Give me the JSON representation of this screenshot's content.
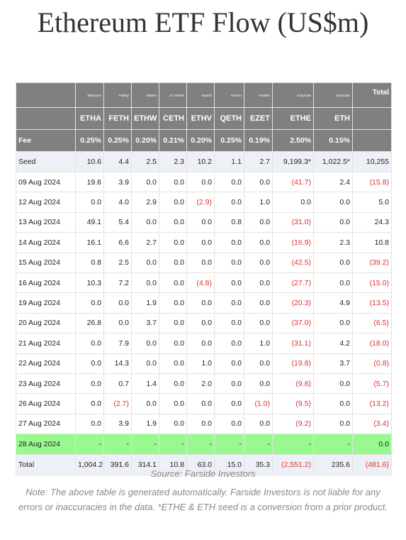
{
  "title": "Ethereum ETF Flow (US$m)",
  "issuers": [
    "Blackrock",
    "Fidelity",
    "Bitwise",
    "21 Shares",
    "Vaneck",
    "Invesco",
    "Franklin",
    "Grayscale",
    "Grayscale"
  ],
  "total_label": "Total",
  "tickers": [
    "ETHA",
    "FETH",
    "ETHW",
    "CETH",
    "ETHV",
    "QETH",
    "EZET",
    "ETHE",
    "ETH"
  ],
  "fee_label": "Fee",
  "fees": [
    "0.25%",
    "0.25%",
    "0.20%",
    "0.21%",
    "0.20%",
    "0.25%",
    "0.19%",
    "2.50%",
    "0.15%"
  ],
  "rows": [
    {
      "label": "Seed",
      "values": [
        "10.6",
        "4.4",
        "2.5",
        "2.3",
        "10.2",
        "1.1",
        "2.7",
        "9,199.3*",
        "1,022.5*",
        "10,255"
      ]
    },
    {
      "label": "09 Aug 2024",
      "values": [
        "19.6",
        "3.9",
        "0.0",
        "0.0",
        "0.0",
        "0.0",
        "0.0",
        "(41.7)",
        "2.4",
        "(15.8)"
      ]
    },
    {
      "label": "12 Aug 2024",
      "values": [
        "0.0",
        "4.0",
        "2.9",
        "0.0",
        "(2.9)",
        "0.0",
        "1.0",
        "0.0",
        "0.0",
        "5.0"
      ]
    },
    {
      "label": "13 Aug 2024",
      "values": [
        "49.1",
        "5.4",
        "0.0",
        "0.0",
        "0.0",
        "0.8",
        "0.0",
        "(31.0)",
        "0.0",
        "24.3"
      ]
    },
    {
      "label": "14 Aug 2024",
      "values": [
        "16.1",
        "6.6",
        "2.7",
        "0.0",
        "0.0",
        "0.0",
        "0.0",
        "(16.9)",
        "2.3",
        "10.8"
      ]
    },
    {
      "label": "15 Aug 2024",
      "values": [
        "0.8",
        "2.5",
        "0.0",
        "0.0",
        "0.0",
        "0.0",
        "0.0",
        "(42.5)",
        "0.0",
        "(39.2)"
      ]
    },
    {
      "label": "16 Aug 2024",
      "values": [
        "10.3",
        "7.2",
        "0.0",
        "0.0",
        "(4.8)",
        "0.0",
        "0.0",
        "(27.7)",
        "0.0",
        "(15.0)"
      ]
    },
    {
      "label": "19 Aug 2024",
      "values": [
        "0.0",
        "0.0",
        "1.9",
        "0.0",
        "0.0",
        "0.0",
        "0.0",
        "(20.3)",
        "4.9",
        "(13.5)"
      ]
    },
    {
      "label": "20 Aug 2024",
      "values": [
        "26.8",
        "0.0",
        "3.7",
        "0.0",
        "0.0",
        "0.0",
        "0.0",
        "(37.0)",
        "0.0",
        "(6.5)"
      ]
    },
    {
      "label": "21 Aug 2024",
      "values": [
        "0.0",
        "7.9",
        "0.0",
        "0.0",
        "0.0",
        "0.0",
        "1.0",
        "(31.1)",
        "4.2",
        "(18.0)"
      ]
    },
    {
      "label": "22 Aug 2024",
      "values": [
        "0.0",
        "14.3",
        "0.0",
        "0.0",
        "1.0",
        "0.0",
        "0.0",
        "(19.8)",
        "3.7",
        "(0.8)"
      ]
    },
    {
      "label": "23 Aug 2024",
      "values": [
        "0.0",
        "0.7",
        "1.4",
        "0.0",
        "2.0",
        "0.0",
        "0.0",
        "(9.8)",
        "0.0",
        "(5.7)"
      ]
    },
    {
      "label": "26 Aug 2024",
      "values": [
        "0.0",
        "(2.7)",
        "0.0",
        "0.0",
        "0.0",
        "0.0",
        "(1.0)",
        "(9.5)",
        "0.0",
        "(13.2)"
      ]
    },
    {
      "label": "27 Aug 2024",
      "values": [
        "0.0",
        "3.9",
        "1.9",
        "0.0",
        "0.0",
        "0.0",
        "0.0",
        "(9.2)",
        "0.0",
        "(3.4)"
      ]
    },
    {
      "label": "28 Aug 2024",
      "values": [
        "-",
        "-",
        "-",
        "-",
        "-",
        "-",
        "-",
        "-",
        "-",
        "0.0"
      ]
    },
    {
      "label": "Total",
      "values": [
        "1,004.2",
        "391.6",
        "314.1",
        "10.8",
        "63.0",
        "15.0",
        "35.3",
        "(2,551.2)",
        "235.6",
        "(481.6)"
      ]
    }
  ],
  "source": "Source: Farside Investors",
  "note": "Note: The above table is generated automatically. Farside Investors is not liable for any errors or inaccuracies in the data. *ETHE & ETH seed is a conversion from a prior product.",
  "colors": {
    "header_bg": "#808080",
    "highlight_bg": "#98f98e",
    "negative": "#e03131",
    "band_bg": "#eef0f7"
  }
}
